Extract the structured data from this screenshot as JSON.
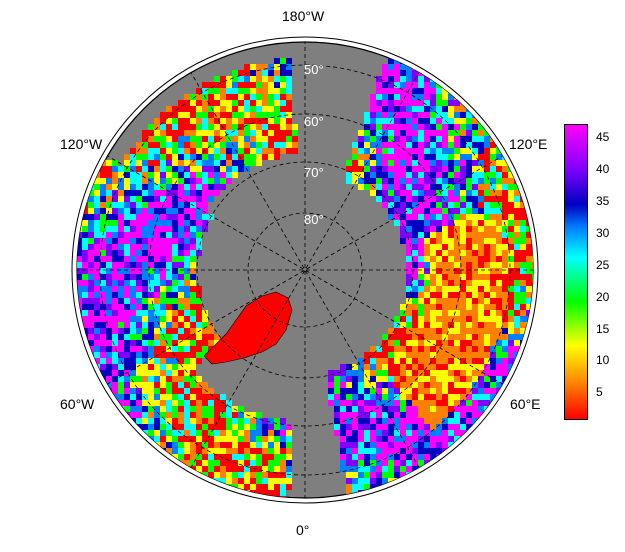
{
  "map": {
    "projection": "north polar stereographic",
    "longitude_labels": {
      "top": "180°W",
      "upper_left": "120°W",
      "upper_right": "120°E",
      "lower_left": "60°W",
      "lower_right": "60°E",
      "bottom": "0°"
    },
    "latitude_labels": [
      "50°",
      "60°",
      "70°",
      "80°"
    ],
    "ocean_color": "#7f7f7f",
    "greenland_value_color": "#ff0000"
  },
  "colorbar": {
    "ticks": [
      "45",
      "40",
      "35",
      "30",
      "25",
      "20",
      "15",
      "10",
      "5"
    ],
    "range": [
      1,
      47
    ],
    "colormap": [
      "#ff0000",
      "#ff8000",
      "#ffff00",
      "#00ff00",
      "#00ffff",
      "#0080ff",
      "#0000c0",
      "#8000ff",
      "#ff00ff"
    ]
  }
}
